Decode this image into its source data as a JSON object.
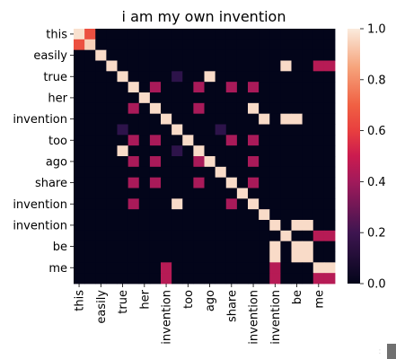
{
  "chart_data": {
    "type": "heatmap",
    "title": "i am my own invention",
    "row_labels": [
      "this",
      "easily",
      "true",
      "her",
      "invention",
      "too",
      "ago",
      "share",
      "invention",
      "invention",
      "be",
      "me"
    ],
    "col_labels": [
      "this",
      "easily",
      "true",
      "her",
      "invention",
      "too",
      "ago",
      "share",
      "invention",
      "invention",
      "be",
      "me"
    ],
    "row_tick_every": 2,
    "col_tick_every": 2,
    "vmin": 0.0,
    "vmax": 1.0,
    "colorbar_ticks": [
      "0.0",
      "0.2",
      "0.4",
      "0.6",
      "0.8",
      "1.0"
    ],
    "colormap": "rocket",
    "matrix": [
      [
        0.98,
        0.65,
        0,
        0,
        0,
        0,
        0,
        0,
        0,
        0,
        0,
        0,
        0,
        0,
        0,
        0,
        0,
        0,
        0,
        0,
        0,
        0,
        0,
        0
      ],
      [
        0.65,
        0.95,
        0,
        0,
        0,
        0,
        0,
        0,
        0,
        0,
        0,
        0,
        0,
        0,
        0,
        0,
        0,
        0,
        0,
        0,
        0,
        0,
        0,
        0
      ],
      [
        0,
        0,
        0.97,
        0,
        0,
        0,
        0,
        0,
        0,
        0,
        0,
        0,
        0,
        0,
        0,
        0,
        0,
        0,
        0,
        0,
        0,
        0,
        0,
        0
      ],
      [
        0,
        0,
        0,
        0.97,
        0,
        0,
        0,
        0,
        0,
        0,
        0,
        0,
        0,
        0,
        0,
        0,
        0,
        0,
        0,
        0.97,
        0,
        0,
        0.45,
        0.45
      ],
      [
        0,
        0,
        0,
        0,
        0.97,
        0,
        0,
        0,
        0,
        0.15,
        0,
        0,
        0.97,
        0,
        0,
        0,
        0,
        0,
        0,
        0,
        0,
        0,
        0,
        0
      ],
      [
        0,
        0,
        0,
        0,
        0,
        0.97,
        0,
        0.42,
        0,
        0,
        0,
        0.42,
        0,
        0,
        0.42,
        0,
        0.42,
        0,
        0,
        0,
        0,
        0,
        0,
        0
      ],
      [
        0,
        0,
        0,
        0,
        0,
        0,
        0.97,
        0,
        0,
        0,
        0,
        0,
        0,
        0,
        0,
        0,
        0,
        0,
        0,
        0,
        0,
        0,
        0,
        0
      ],
      [
        0,
        0,
        0,
        0,
        0,
        0.42,
        0,
        0.97,
        0,
        0,
        0,
        0.42,
        0,
        0,
        0,
        0,
        0.97,
        0,
        0,
        0,
        0,
        0,
        0,
        0
      ],
      [
        0,
        0,
        0,
        0,
        0,
        0,
        0,
        0,
        0.97,
        0,
        0,
        0,
        0,
        0,
        0,
        0,
        0,
        0.97,
        0,
        0.97,
        0.97,
        0,
        0,
        0
      ],
      [
        0,
        0,
        0,
        0,
        0.15,
        0,
        0,
        0,
        0,
        0.97,
        0,
        0,
        0,
        0.15,
        0,
        0,
        0,
        0,
        0,
        0,
        0,
        0,
        0,
        0
      ],
      [
        0,
        0,
        0,
        0,
        0,
        0.42,
        0,
        0.42,
        0,
        0,
        0.97,
        0,
        0,
        0,
        0.42,
        0,
        0.42,
        0,
        0,
        0,
        0,
        0,
        0,
        0
      ],
      [
        0,
        0,
        0,
        0,
        0.97,
        0,
        0,
        0,
        0,
        0.15,
        0,
        0.97,
        0,
        0,
        0,
        0,
        0,
        0,
        0,
        0,
        0,
        0,
        0,
        0
      ],
      [
        0,
        0,
        0,
        0,
        0,
        0.42,
        0,
        0.42,
        0,
        0,
        0,
        0.42,
        0.97,
        0,
        0,
        0,
        0.42,
        0,
        0,
        0,
        0,
        0,
        0,
        0
      ],
      [
        0,
        0,
        0,
        0,
        0,
        0,
        0,
        0,
        0,
        0,
        0,
        0,
        0,
        0.97,
        0,
        0,
        0,
        0,
        0,
        0,
        0,
        0,
        0,
        0
      ],
      [
        0,
        0,
        0,
        0,
        0,
        0.42,
        0,
        0.42,
        0,
        0,
        0,
        0.42,
        0,
        0,
        0.97,
        0,
        0.42,
        0,
        0,
        0,
        0,
        0,
        0,
        0
      ],
      [
        0,
        0,
        0,
        0,
        0,
        0,
        0,
        0,
        0,
        0,
        0,
        0,
        0,
        0,
        0,
        0.97,
        0,
        0,
        0,
        0,
        0,
        0,
        0,
        0
      ],
      [
        0,
        0,
        0,
        0,
        0,
        0.42,
        0,
        0,
        0,
        0.97,
        0,
        0,
        0,
        0,
        0.42,
        0,
        0.97,
        0,
        0,
        0,
        0,
        0,
        0,
        0
      ],
      [
        0,
        0,
        0,
        0,
        0,
        0,
        0,
        0,
        0,
        0,
        0,
        0,
        0,
        0,
        0,
        0,
        0,
        0.97,
        0,
        0,
        0,
        0,
        0,
        0
      ],
      [
        0,
        0,
        0,
        0,
        0,
        0,
        0,
        0,
        0,
        0,
        0,
        0,
        0,
        0,
        0,
        0,
        0,
        0,
        0.97,
        0,
        0.97,
        0.97,
        0,
        0
      ],
      [
        0,
        0,
        0,
        0,
        0,
        0,
        0,
        0,
        0,
        0,
        0,
        0,
        0,
        0,
        0,
        0,
        0,
        0,
        0,
        0.97,
        0,
        0,
        0.45,
        0.45
      ],
      [
        0,
        0,
        0,
        0,
        0,
        0,
        0,
        0,
        0,
        0,
        0,
        0,
        0,
        0,
        0,
        0,
        0,
        0,
        0.97,
        0,
        0.97,
        0.97,
        0,
        0
      ],
      [
        0,
        0,
        0,
        0,
        0,
        0,
        0,
        0,
        0,
        0,
        0,
        0,
        0,
        0,
        0,
        0,
        0,
        0,
        0.97,
        0,
        0.97,
        0.97,
        0,
        0
      ],
      [
        0,
        0,
        0,
        0,
        0,
        0,
        0,
        0,
        0.45,
        0,
        0,
        0,
        0,
        0,
        0,
        0,
        0,
        0,
        0.45,
        0,
        0,
        0,
        0.97,
        0.97
      ],
      [
        0,
        0,
        0,
        0,
        0,
        0,
        0,
        0,
        0.45,
        0,
        0,
        0,
        0,
        0,
        0,
        0,
        0,
        0,
        0.45,
        0,
        0,
        0,
        0.45,
        0.45
      ]
    ]
  }
}
